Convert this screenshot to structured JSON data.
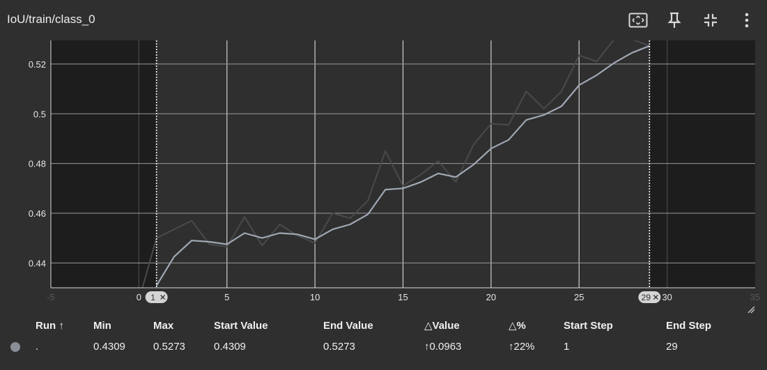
{
  "chart_data": {
    "type": "line",
    "title": "IoU/train/class_0",
    "xlim": [
      -5,
      35
    ],
    "ylim": [
      0.43,
      0.5295
    ],
    "x_ticks": [
      "-5",
      "0",
      "5",
      "10",
      "15",
      "20",
      "25",
      "30",
      "35"
    ],
    "y_ticks": [
      {
        "value": 0.44,
        "label": "0.44"
      },
      {
        "value": 0.46,
        "label": "0.46"
      },
      {
        "value": 0.48,
        "label": "0.48"
      },
      {
        "value": 0.5,
        "label": "0.5"
      },
      {
        "value": 0.52,
        "label": "0.52"
      }
    ],
    "grid": true,
    "range_start": 1,
    "range_end": 29,
    "range_start_label": "1",
    "range_end_label": "29",
    "series": [
      {
        "color": "#4a4a4a",
        "x": [
          0,
          1,
          2,
          3,
          4,
          5,
          6,
          7,
          8,
          9,
          10,
          11,
          12,
          13,
          14,
          15,
          16,
          17,
          18,
          19,
          20,
          21,
          22,
          23,
          24,
          25,
          26,
          27,
          28,
          29
        ],
        "values": [
          0.425,
          0.45,
          0.4535,
          0.457,
          0.4475,
          0.4465,
          0.4585,
          0.447,
          0.4555,
          0.451,
          0.448,
          0.46,
          0.458,
          0.465,
          0.485,
          0.471,
          0.4755,
          0.481,
          0.4725,
          0.4875,
          0.496,
          0.4955,
          0.509,
          0.502,
          0.509,
          0.5235,
          0.521,
          0.53,
          0.53,
          0.5273
        ]
      },
      {
        "color": "#a0a8b4",
        "x": [
          1,
          2,
          3,
          4,
          5,
          6,
          7,
          8,
          9,
          10,
          11,
          12,
          13,
          14,
          15,
          16,
          17,
          18,
          19,
          20,
          21,
          22,
          23,
          24,
          25,
          26,
          27,
          28,
          29
        ],
        "values": [
          0.4309,
          0.4425,
          0.449,
          0.4485,
          0.4475,
          0.452,
          0.45,
          0.452,
          0.4515,
          0.4495,
          0.4535,
          0.4555,
          0.4595,
          0.4695,
          0.47,
          0.4725,
          0.476,
          0.4745,
          0.4795,
          0.486,
          0.4895,
          0.4975,
          0.4995,
          0.503,
          0.5115,
          0.5155,
          0.5205,
          0.5245,
          0.5273
        ]
      }
    ]
  },
  "toolbar": {
    "fit_icon": "fit-domain-icon",
    "pin_icon": "pin-icon",
    "collapse_icon": "collapse-icon",
    "more_icon": "more-vert-icon"
  },
  "table": {
    "headers": {
      "run": "Run ↑",
      "min": "Min",
      "max": "Max",
      "start_value": "Start Value",
      "end_value": "End Value",
      "delta_value": "△Value",
      "delta_pct": "△%",
      "start_step": "Start Step",
      "end_step": "End Step"
    },
    "row": {
      "run_color": "#8a8e96",
      "run": ".",
      "min": "0.4309",
      "max": "0.5273",
      "start_value": "0.4309",
      "end_value": "0.5273",
      "delta_value": "↑0.0963",
      "delta_pct": "↑22%",
      "start_step": "1",
      "end_step": "29"
    }
  }
}
